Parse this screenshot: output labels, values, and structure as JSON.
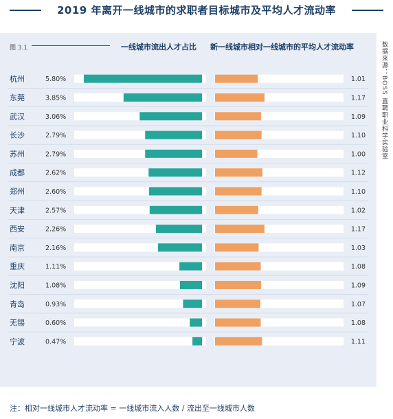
{
  "title": "2019 年离开一线城市的求职者目标城市及平均人才流动率",
  "figure_label": "图 3.1",
  "source": "数据来源：BOSS 直聘职业科学实验室",
  "note": "注：相对一线城市人才流动率 = 一线城市流入人数 / 流出至一线城市人数",
  "colors": {
    "share_bar": "#26a69a",
    "rate_bar": "#f0a060",
    "track": "#ffffff",
    "panel": "#e9eef6",
    "title": "#1f3f66"
  },
  "chart_data": {
    "type": "bar",
    "categories": [
      "杭州",
      "东莞",
      "武汉",
      "长沙",
      "苏州",
      "成都",
      "郑州",
      "天津",
      "西安",
      "南京",
      "重庆",
      "沈阳",
      "青岛",
      "无锡",
      "宁波"
    ],
    "series": [
      {
        "name": "一线城市流出人才占比",
        "values": [
          5.8,
          3.85,
          3.06,
          2.79,
          2.79,
          2.62,
          2.6,
          2.57,
          2.26,
          2.16,
          1.11,
          1.08,
          0.93,
          0.6,
          0.47
        ],
        "labels": [
          "5.80%",
          "3.85%",
          "3.06%",
          "2.79%",
          "2.79%",
          "2.62%",
          "2.60%",
          "2.57%",
          "2.26%",
          "2.16%",
          "1.11%",
          "1.08%",
          "0.93%",
          "0.60%",
          "0.47%"
        ],
        "max": 6.5
      },
      {
        "name": "新一线城市相对一线城市的平均人才流动率",
        "values": [
          1.01,
          1.17,
          1.09,
          1.1,
          1.0,
          1.12,
          1.1,
          1.02,
          1.17,
          1.03,
          1.08,
          1.09,
          1.07,
          1.08,
          1.11
        ],
        "labels": [
          "1.01",
          "1.17",
          "1.09",
          "1.10",
          "1.00",
          "1.12",
          "1.10",
          "1.02",
          "1.17",
          "1.03",
          "1.08",
          "1.09",
          "1.07",
          "1.08",
          "1.11"
        ],
        "max": 3.4
      }
    ]
  }
}
